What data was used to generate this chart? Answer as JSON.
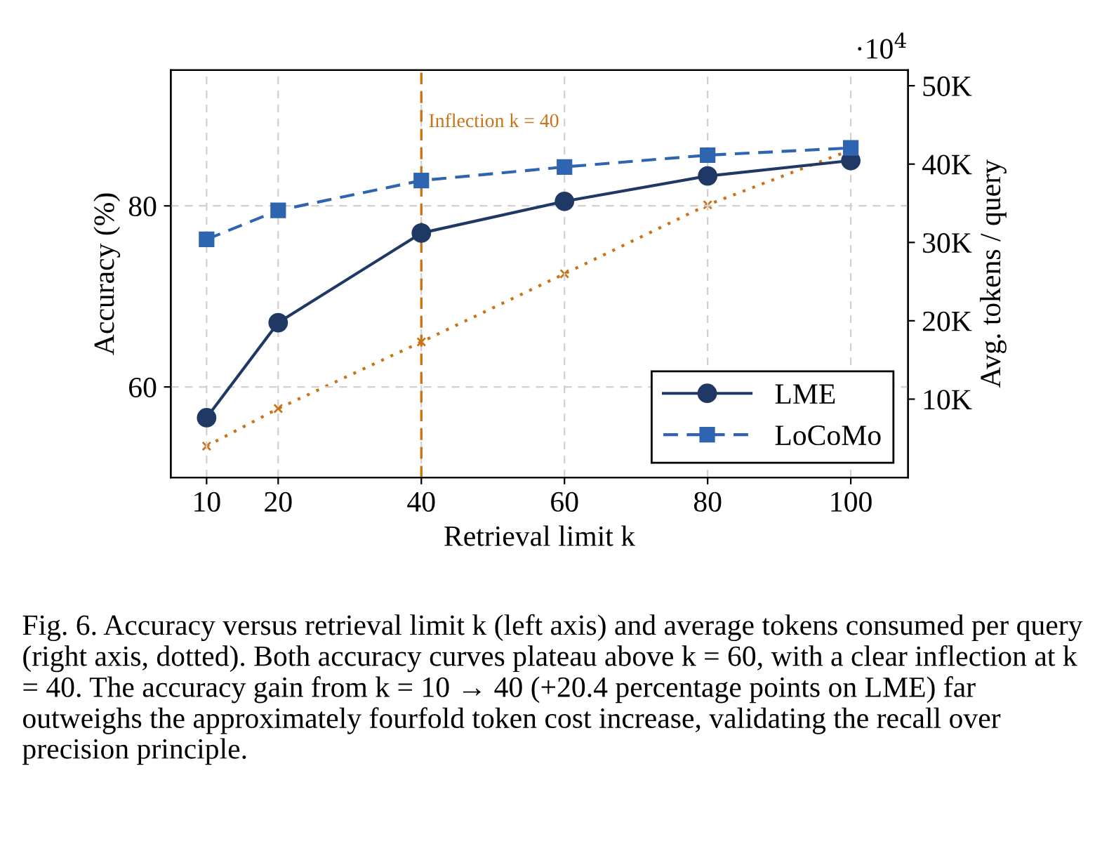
{
  "chart_data": {
    "type": "line",
    "x": [
      10,
      20,
      40,
      60,
      80,
      100
    ],
    "xlabel": "Retrieval limit k",
    "ylabel": "Accuracy (%)",
    "y2label": "Avg. tokens / query",
    "xlim": [
      5,
      108
    ],
    "xticks": [
      10,
      20,
      40,
      60,
      80,
      100
    ],
    "ylim": [
      50,
      95
    ],
    "yticks": [
      60,
      80
    ],
    "y2lim": [
      0,
      52000
    ],
    "y2ticks": [
      {
        "value": 10000,
        "label": "10K"
      },
      {
        "value": 20000,
        "label": "20K"
      },
      {
        "value": 30000,
        "label": "30K"
      },
      {
        "value": 40000,
        "label": "40K"
      },
      {
        "value": 50000,
        "label": "50K"
      }
    ],
    "series": [
      {
        "name": "LME",
        "color": "#1f3864",
        "marker": "circle",
        "line_style": "solid",
        "values": [
          56.6,
          67.1,
          77.0,
          80.5,
          83.3,
          85.0
        ]
      },
      {
        "name": "LoCoMo",
        "color": "#2e64b0",
        "marker": "square",
        "line_style": "dashed",
        "values": [
          76.3,
          79.5,
          82.8,
          84.3,
          85.6,
          86.4
        ]
      },
      {
        "color": "#c87416",
        "marker": "cross",
        "line_style": "dotted",
        "axis": "y2",
        "values": [
          4000,
          8800,
          17300,
          26000,
          34800,
          41800
        ]
      }
    ],
    "ref_lines": [
      {
        "axis": "x",
        "value": 40,
        "label": "Inflection k = 40",
        "color": "#c87416",
        "line_style": "dashed"
      }
    ],
    "grid": true,
    "legend": "bottom right",
    "annotations": [
      "·10$^{4}$",
      "Fig. 6. Accuracy versus retrieval limit k (left axis) and average tokens consumed per query (right axis, dotted). Both accuracy curves plateau above k = 60, with a clear inflection at k = 40. The accuracy gain from k = 10 → 40 (+20.4 percentage points on LME) far outweighs the approximately fourfold token cost increase, validating the recall over precision principle."
    ]
  }
}
